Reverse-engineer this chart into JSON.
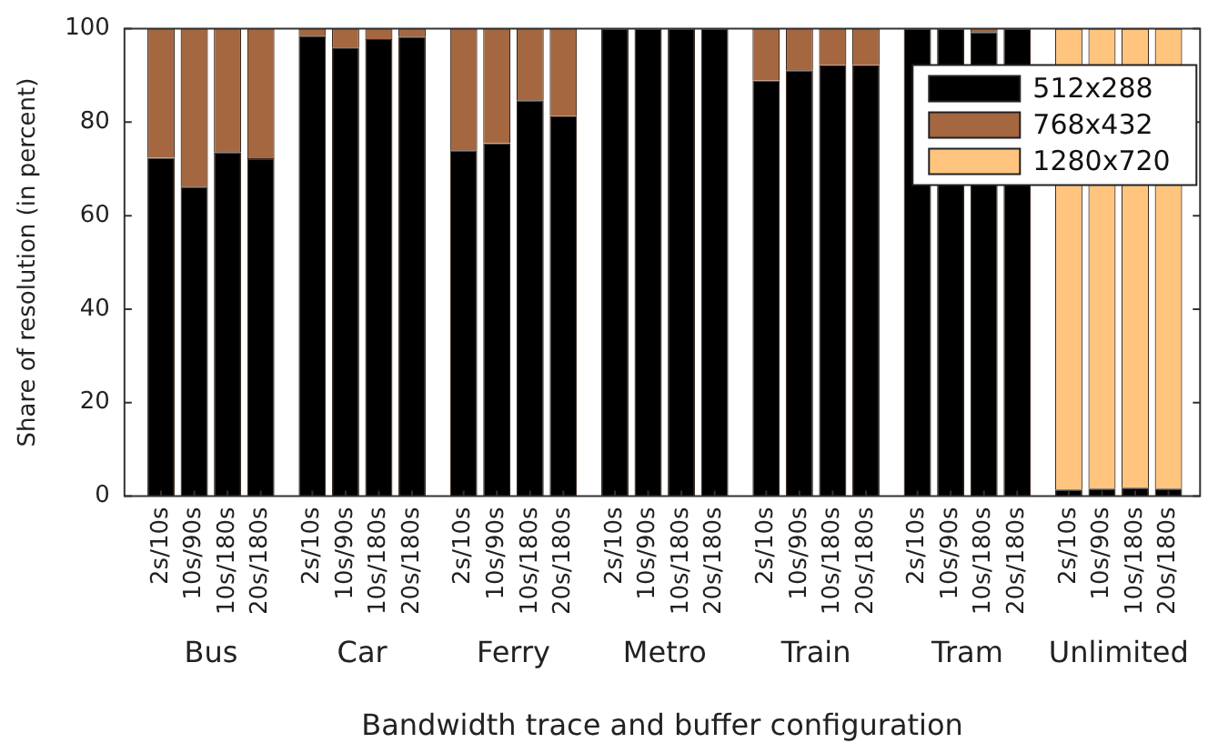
{
  "chart_data": {
    "type": "bar",
    "stacked": true,
    "xlabel": "Bandwidth trace and buffer configuration",
    "ylabel": "Share of resolution (in percent)",
    "categories": [
      "2s/10s",
      "10s/90s",
      "10s/180s",
      "20s/180s",
      "2s/10s",
      "10s/90s",
      "10s/180s",
      "20s/180s",
      "2s/10s",
      "10s/90s",
      "10s/180s",
      "20s/180s",
      "2s/10s",
      "10s/90s",
      "10s/180s",
      "20s/180s",
      "2s/10s",
      "10s/90s",
      "10s/180s",
      "20s/180s",
      "2s/10s",
      "10s/90s",
      "10s/180s",
      "20s/180s",
      "2s/10s",
      "10s/90s",
      "10s/180s",
      "20s/180s"
    ],
    "annotations": [
      "Bus",
      "Car",
      "Ferry",
      "Metro",
      "Train",
      "Tram",
      "Unlimited"
    ],
    "series": [
      {
        "name": "512x288",
        "color": "#000000",
        "values": [
          72.4,
          66.2,
          73.6,
          72.3,
          98.5,
          96.0,
          97.8,
          98.3,
          74.0,
          75.5,
          84.7,
          81.3,
          100,
          100,
          100,
          100,
          88.9,
          91.1,
          92.2,
          92.2,
          100,
          100,
          99.3,
          100,
          1.4,
          1.6,
          1.8,
          1.6
        ]
      },
      {
        "name": "768x432",
        "color": "#a5673f",
        "values": [
          27.6,
          33.8,
          26.4,
          27.7,
          1.5,
          4.0,
          2.2,
          1.7,
          26.0,
          24.5,
          15.3,
          18.7,
          0,
          0,
          0,
          0,
          11.1,
          8.9,
          7.8,
          7.8,
          0,
          0,
          0.7,
          0,
          0,
          0,
          0,
          0
        ]
      },
      {
        "name": "1280x720",
        "color": "#ffc57f",
        "values": [
          0,
          0,
          0,
          0,
          0,
          0,
          0,
          0,
          0,
          0,
          0,
          0,
          0,
          0,
          0,
          0,
          0,
          0,
          0,
          0,
          0,
          0,
          0,
          0,
          98.6,
          98.4,
          98.2,
          98.4
        ]
      }
    ],
    "ylim": [
      0,
      100
    ],
    "yticks": [
      0,
      20,
      40,
      60,
      80,
      100
    ],
    "grid": false,
    "legend": "top right"
  }
}
